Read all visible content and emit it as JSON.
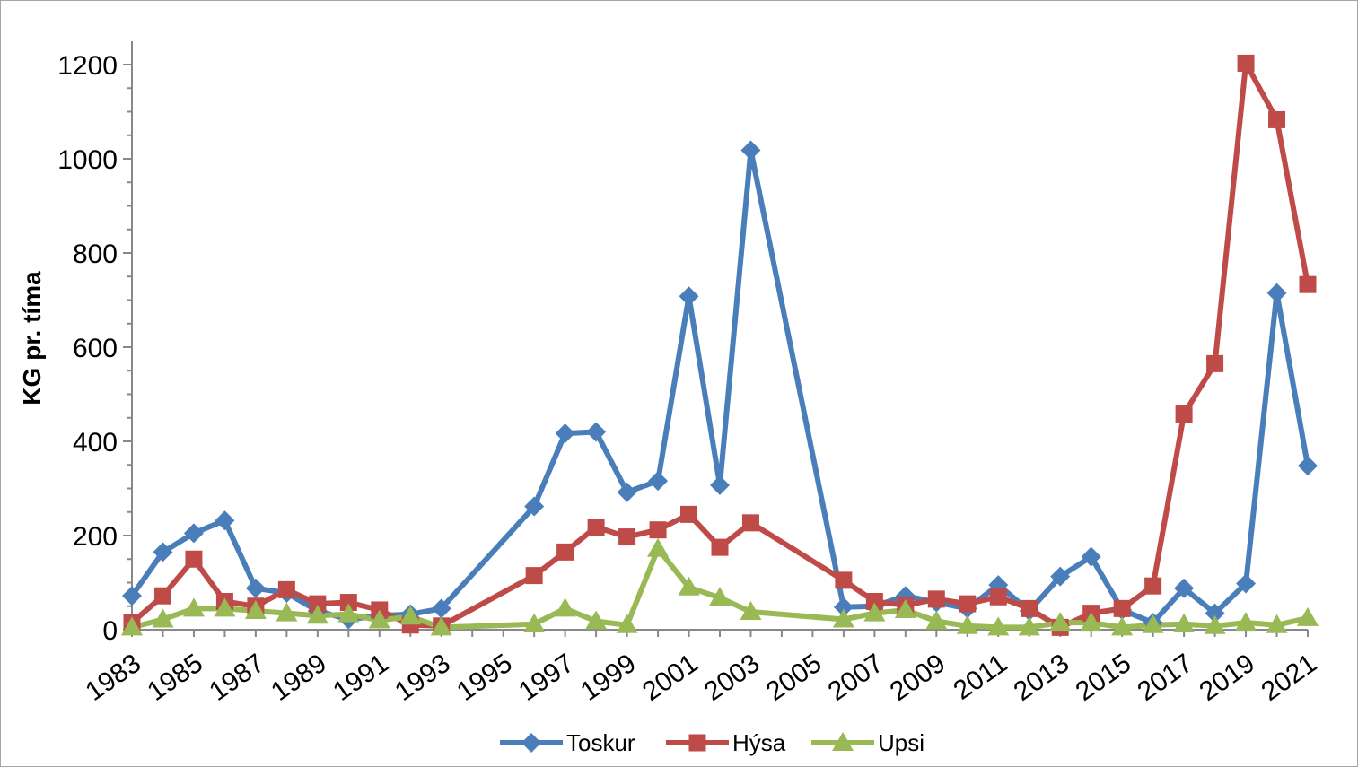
{
  "chart_data": {
    "type": "line",
    "title": "",
    "xlabel": "",
    "ylabel": "KG pr. tíma",
    "ylim": [
      0,
      1200
    ],
    "yticks": [
      0,
      200,
      400,
      600,
      800,
      1000,
      1200
    ],
    "xlim": [
      1983,
      2021
    ],
    "xticks": [
      1983,
      1985,
      1987,
      1989,
      1991,
      1993,
      1995,
      1997,
      1999,
      2001,
      2003,
      2005,
      2007,
      2009,
      2011,
      2013,
      2015,
      2017,
      2019,
      2021
    ],
    "grid": false,
    "legend": "bottom",
    "series": [
      {
        "name": "Toskur",
        "color": "#4a7ebb",
        "marker": "diamond",
        "points": [
          [
            1983,
            72
          ],
          [
            1984,
            165
          ],
          [
            1985,
            205
          ],
          [
            1986,
            232
          ],
          [
            1987,
            88
          ],
          [
            1988,
            78
          ],
          [
            1989,
            40
          ],
          [
            1990,
            22
          ],
          [
            1991,
            30
          ],
          [
            1992,
            33
          ],
          [
            1993,
            45
          ],
          [
            1996,
            262
          ],
          [
            1997,
            417
          ],
          [
            1998,
            420
          ],
          [
            1999,
            292
          ],
          [
            2000,
            316
          ],
          [
            2001,
            708
          ],
          [
            2002,
            307
          ],
          [
            2003,
            1018
          ],
          [
            2006,
            48
          ],
          [
            2007,
            50
          ],
          [
            2008,
            72
          ],
          [
            2009,
            58
          ],
          [
            2010,
            45
          ],
          [
            2011,
            95
          ],
          [
            2012,
            40
          ],
          [
            2013,
            113
          ],
          [
            2014,
            155
          ],
          [
            2015,
            42
          ],
          [
            2016,
            15
          ],
          [
            2017,
            88
          ],
          [
            2018,
            35
          ],
          [
            2019,
            98
          ],
          [
            2020,
            715
          ],
          [
            2021,
            348
          ]
        ]
      },
      {
        "name": "Hýsa",
        "color": "#be4b48",
        "marker": "square",
        "points": [
          [
            1983,
            15
          ],
          [
            1984,
            72
          ],
          [
            1985,
            150
          ],
          [
            1986,
            60
          ],
          [
            1987,
            50
          ],
          [
            1988,
            85
          ],
          [
            1989,
            55
          ],
          [
            1990,
            58
          ],
          [
            1991,
            42
          ],
          [
            1992,
            10
          ],
          [
            1993,
            8
          ],
          [
            1996,
            115
          ],
          [
            1997,
            165
          ],
          [
            1998,
            218
          ],
          [
            1999,
            197
          ],
          [
            2000,
            212
          ],
          [
            2001,
            245
          ],
          [
            2002,
            175
          ],
          [
            2003,
            227
          ],
          [
            2006,
            105
          ],
          [
            2007,
            60
          ],
          [
            2008,
            52
          ],
          [
            2009,
            65
          ],
          [
            2010,
            55
          ],
          [
            2011,
            70
          ],
          [
            2012,
            45
          ],
          [
            2013,
            5
          ],
          [
            2014,
            35
          ],
          [
            2015,
            45
          ],
          [
            2016,
            93
          ],
          [
            2017,
            458
          ],
          [
            2018,
            565
          ],
          [
            2019,
            1203
          ],
          [
            2020,
            1083
          ],
          [
            2021,
            733
          ]
        ]
      },
      {
        "name": "Upsi",
        "color": "#98b954",
        "marker": "triangle",
        "points": [
          [
            1983,
            5
          ],
          [
            1984,
            22
          ],
          [
            1985,
            45
          ],
          [
            1986,
            45
          ],
          [
            1987,
            40
          ],
          [
            1988,
            35
          ],
          [
            1989,
            30
          ],
          [
            1990,
            33
          ],
          [
            1991,
            20
          ],
          [
            1992,
            28
          ],
          [
            1993,
            5
          ],
          [
            1996,
            12
          ],
          [
            1997,
            45
          ],
          [
            1998,
            18
          ],
          [
            1999,
            10
          ],
          [
            2000,
            172
          ],
          [
            2001,
            90
          ],
          [
            2002,
            68
          ],
          [
            2003,
            38
          ],
          [
            2006,
            22
          ],
          [
            2007,
            35
          ],
          [
            2008,
            42
          ],
          [
            2009,
            18
          ],
          [
            2010,
            8
          ],
          [
            2011,
            5
          ],
          [
            2012,
            5
          ],
          [
            2013,
            15
          ],
          [
            2014,
            15
          ],
          [
            2015,
            5
          ],
          [
            2016,
            10
          ],
          [
            2017,
            12
          ],
          [
            2018,
            8
          ],
          [
            2019,
            15
          ],
          [
            2020,
            10
          ],
          [
            2021,
            25
          ]
        ]
      }
    ]
  }
}
